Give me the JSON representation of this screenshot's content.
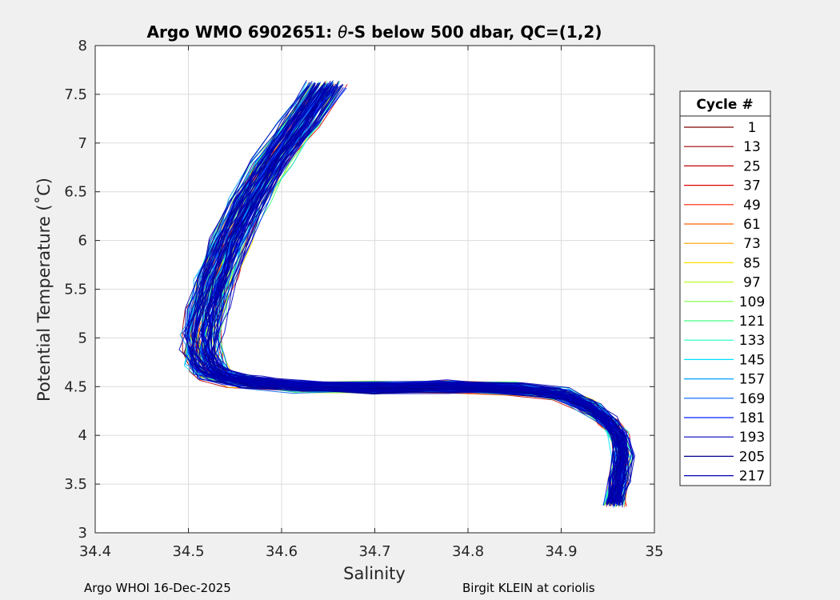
{
  "chart_data": {
    "type": "line",
    "title_prefix": "Argo WMO 6902651: ",
    "title_symbol": "θ",
    "title_suffix": "-S below 500 dbar,  QC=(1,2)",
    "xlabel": "Salinity",
    "ylabel": "Potential Temperature (˚C)",
    "xlim": [
      34.4,
      35.0
    ],
    "ylim": [
      3,
      8
    ],
    "xticks": [
      "34.4",
      "34.5",
      "34.6",
      "34.7",
      "34.8",
      "34.9",
      "35"
    ],
    "yticks": [
      "3",
      "3.5",
      "4",
      "4.5",
      "5",
      "5.5",
      "6",
      "6.5",
      "7",
      "7.5",
      "8"
    ],
    "grid": true,
    "legend_title": "Cycle #",
    "legend_position": "right-outside",
    "legend": [
      {
        "label": "1",
        "color": "#800000"
      },
      {
        "label": "13",
        "color": "#a00000"
      },
      {
        "label": "25",
        "color": "#c00000"
      },
      {
        "label": "37",
        "color": "#e00000"
      },
      {
        "label": "49",
        "color": "#ff2000"
      },
      {
        "label": "61",
        "color": "#ff6000"
      },
      {
        "label": "73",
        "color": "#ffa000"
      },
      {
        "label": "85",
        "color": "#ffe000"
      },
      {
        "label": "97",
        "color": "#c0ff20"
      },
      {
        "label": "109",
        "color": "#80ff40"
      },
      {
        "label": "121",
        "color": "#40ff80"
      },
      {
        "label": "133",
        "color": "#20ffc0"
      },
      {
        "label": "145",
        "color": "#00e0ff"
      },
      {
        "label": "157",
        "color": "#00a0ff"
      },
      {
        "label": "169",
        "color": "#0060ff"
      },
      {
        "label": "181",
        "color": "#0020ff"
      },
      {
        "label": "193",
        "color": "#0000c0"
      },
      {
        "label": "205",
        "color": "#000090"
      },
      {
        "label": "217",
        "color": "#0000b0"
      }
    ],
    "mean_profile": {
      "x": [
        34.648,
        34.62,
        34.59,
        34.565,
        34.545,
        34.53,
        34.52,
        34.515,
        34.515,
        34.52,
        34.53,
        34.56,
        34.62,
        34.7,
        34.78,
        34.85,
        34.9,
        34.93,
        34.95,
        34.962,
        34.966,
        34.962,
        34.957
      ],
      "y": [
        7.6,
        7.2,
        6.8,
        6.4,
        6.0,
        5.6,
        5.3,
        5.05,
        4.85,
        4.72,
        4.62,
        4.55,
        4.5,
        4.49,
        4.5,
        4.48,
        4.42,
        4.3,
        4.15,
        4.0,
        3.8,
        3.55,
        3.3
      ]
    },
    "footer_left": "Argo WHOI 16-Dec-2025",
    "footer_right": "Birgit KLEIN at coriolis"
  }
}
